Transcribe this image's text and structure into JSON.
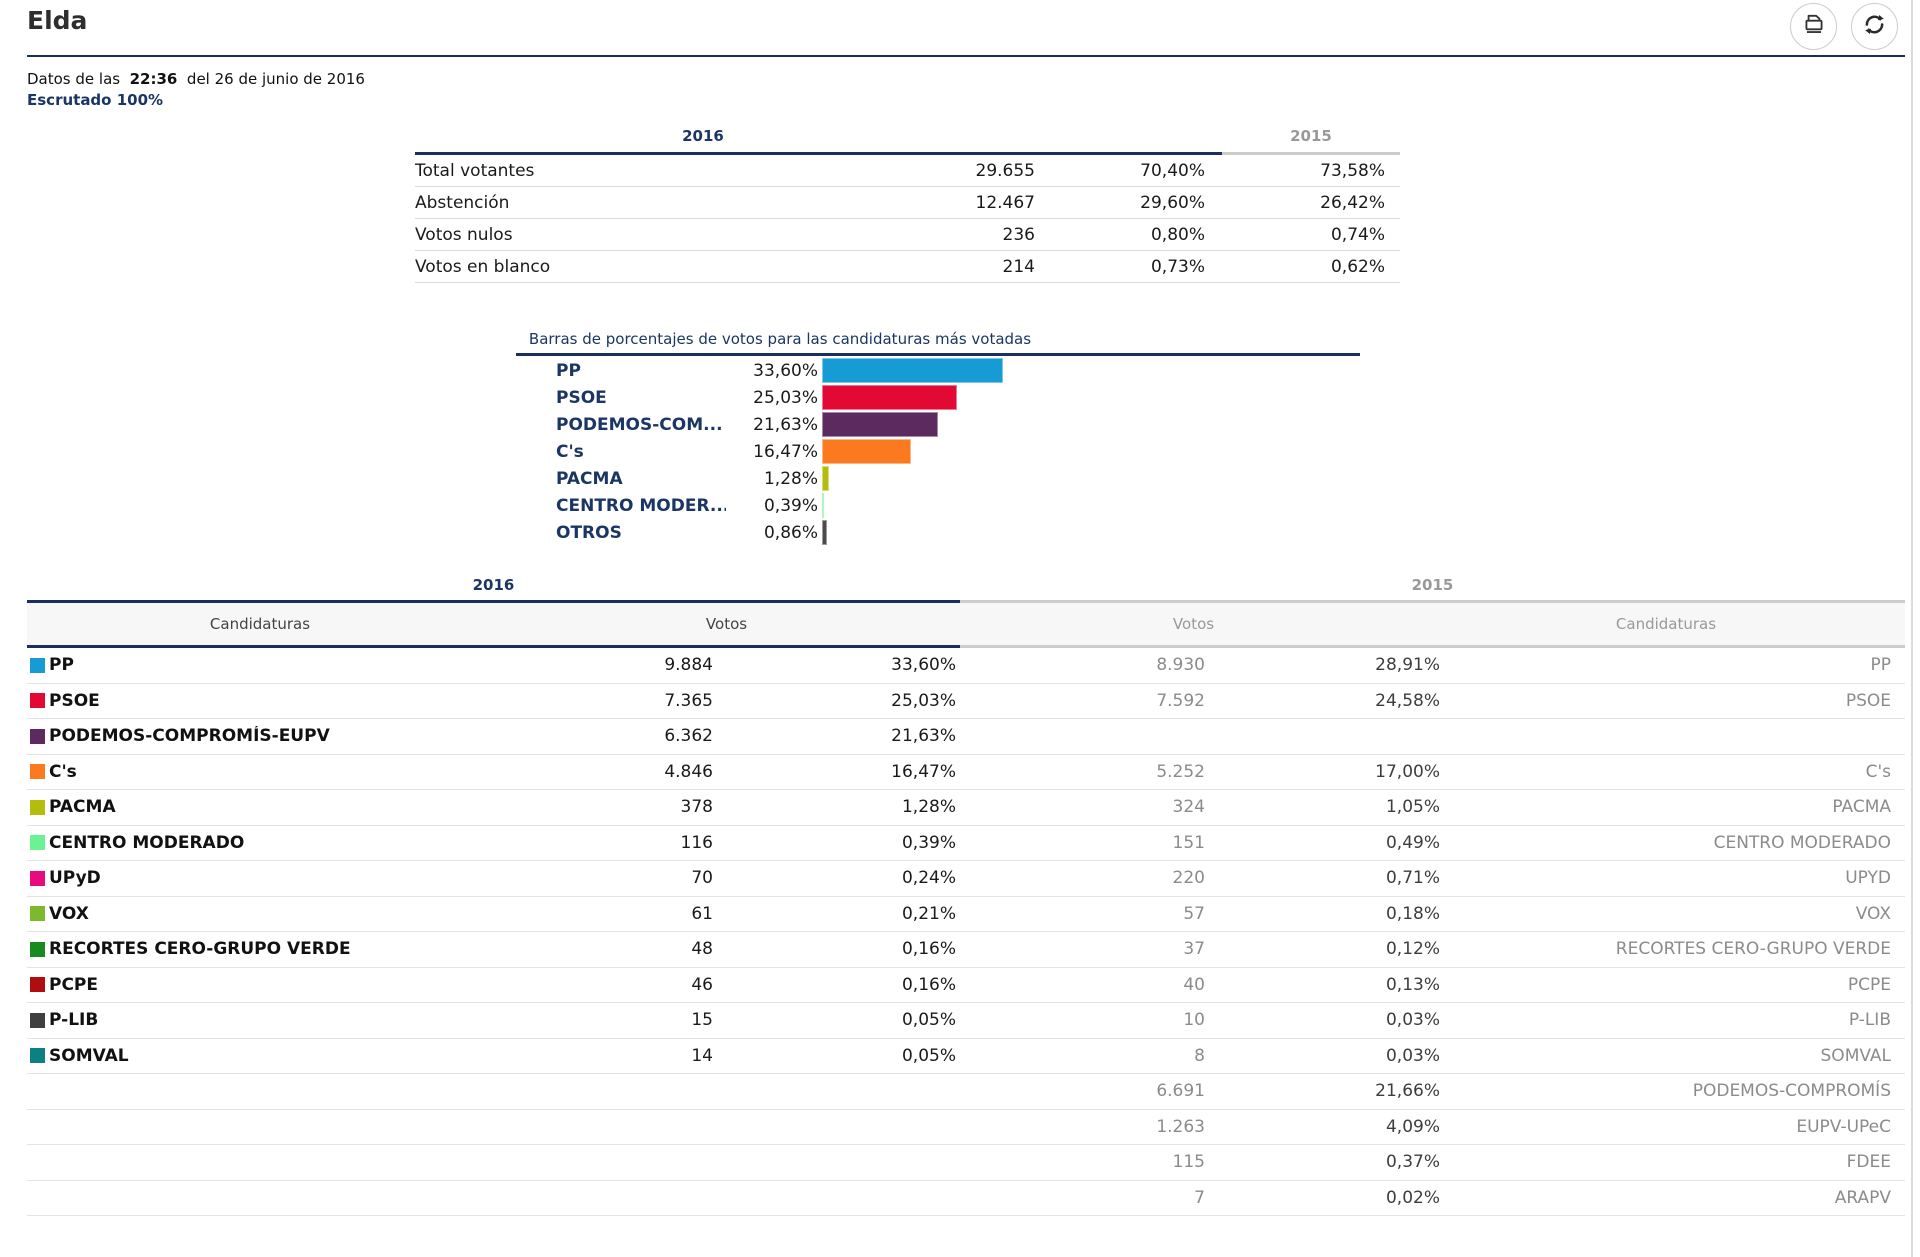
{
  "header": {
    "title": "Elda",
    "buttons": [
      {
        "icon": "printer-icon"
      },
      {
        "icon": "refresh-icon"
      }
    ]
  },
  "status": {
    "prefix": "Datos de las",
    "time": "22:36",
    "suffix": "del 26 de junio de 2016",
    "scrutiny": "Escrutado 100%"
  },
  "summary_table": {
    "year_2016": "2016",
    "year_2015": "2015",
    "rows": [
      {
        "label": "Total votantes",
        "votes": "29.655",
        "pct_2016": "70,40%",
        "pct_2015": "73,58%"
      },
      {
        "label": "Abstención",
        "votes": "12.467",
        "pct_2016": "29,60%",
        "pct_2015": "26,42%"
      },
      {
        "label": "Votos nulos",
        "votes": "236",
        "pct_2016": "0,80%",
        "pct_2015": "0,74%"
      },
      {
        "label": "Votos en blanco",
        "votes": "214",
        "pct_2016": "0,73%",
        "pct_2015": "0,62%"
      }
    ]
  },
  "chart_data": {
    "type": "bar",
    "orientation": "horizontal",
    "title": "Barras de porcentajes de votos para las candidaturas más votadas",
    "categories": [
      "PP",
      "PSOE",
      "PODEMOS-COM...",
      "C's",
      "PACMA",
      "CENTRO MODER...",
      "OTROS"
    ],
    "values": [
      33.6,
      25.03,
      21.63,
      16.47,
      1.28,
      0.39,
      0.86
    ],
    "value_labels": [
      "33,60%",
      "25,03%",
      "21,63%",
      "16,47%",
      "1,28%",
      "0,39%",
      "0,86%"
    ],
    "colors": [
      "#169bd5",
      "#e30935",
      "#5c2a5e",
      "#fb7a20",
      "#b4bd0c",
      "#6cf193",
      "#4b4b4b"
    ],
    "xlim": [
      0,
      100
    ],
    "grid": false,
    "legend": false
  },
  "main_table": {
    "year_2016": "2016",
    "year_2015": "2015",
    "col_headers": {
      "candidaturas_2016": "Candidaturas",
      "votos_2016": "Votos",
      "votos_2015": "Votos",
      "candidaturas_2015": "Candidaturas"
    },
    "rows": [
      {
        "color": "#169bd5",
        "name": "PP",
        "votes_2016": "9.884",
        "pct_2016": "33,60%",
        "votes_2015": "8.930",
        "pct_2015": "28,91%",
        "name_2015": "PP"
      },
      {
        "color": "#e30935",
        "name": "PSOE",
        "votes_2016": "7.365",
        "pct_2016": "25,03%",
        "votes_2015": "7.592",
        "pct_2015": "24,58%",
        "name_2015": "PSOE"
      },
      {
        "color": "#5c2a5e",
        "name": "PODEMOS-COMPROMÍS-EUPV",
        "votes_2016": "6.362",
        "pct_2016": "21,63%"
      },
      {
        "color": "#fb7a20",
        "name": "C's",
        "votes_2016": "4.846",
        "pct_2016": "16,47%",
        "votes_2015": "5.252",
        "pct_2015": "17,00%",
        "name_2015": "C's"
      },
      {
        "color": "#b4bd0c",
        "name": "PACMA",
        "votes_2016": "378",
        "pct_2016": "1,28%",
        "votes_2015": "324",
        "pct_2015": "1,05%",
        "name_2015": "PACMA"
      },
      {
        "color": "#6cf193",
        "name": "CENTRO MODERADO",
        "votes_2016": "116",
        "pct_2016": "0,39%",
        "votes_2015": "151",
        "pct_2015": "0,49%",
        "name_2015": "CENTRO MODERADO"
      },
      {
        "color": "#e60c7f",
        "name": "UPyD",
        "votes_2016": "70",
        "pct_2016": "0,24%",
        "votes_2015": "220",
        "pct_2015": "0,71%",
        "name_2015": "UPYD"
      },
      {
        "color": "#7cb92c",
        "name": "VOX",
        "votes_2016": "61",
        "pct_2016": "0,21%",
        "votes_2015": "57",
        "pct_2015": "0,18%",
        "name_2015": "VOX"
      },
      {
        "color": "#188a1e",
        "name": "RECORTES CERO-GRUPO VERDE",
        "votes_2016": "48",
        "pct_2016": "0,16%",
        "votes_2015": "37",
        "pct_2015": "0,12%",
        "name_2015": "RECORTES CERO-GRUPO VERDE"
      },
      {
        "color": "#b10d11",
        "name": "PCPE",
        "votes_2016": "46",
        "pct_2016": "0,16%",
        "votes_2015": "40",
        "pct_2015": "0,13%",
        "name_2015": "PCPE"
      },
      {
        "color": "#3f3f3f",
        "name": "P-LIB",
        "votes_2016": "15",
        "pct_2016": "0,05%",
        "votes_2015": "10",
        "pct_2015": "0,03%",
        "name_2015": "P-LIB"
      },
      {
        "color": "#0c8184",
        "name": "SOMVAL",
        "votes_2016": "14",
        "pct_2016": "0,05%",
        "votes_2015": "8",
        "pct_2015": "0,03%",
        "name_2015": "SOMVAL"
      },
      {
        "votes_2015": "6.691",
        "pct_2015": "21,66%",
        "name_2015": "PODEMOS-COMPROMÍS"
      },
      {
        "votes_2015": "1.263",
        "pct_2015": "4,09%",
        "name_2015": "EUPV-UPeC"
      },
      {
        "votes_2015": "115",
        "pct_2015": "0,37%",
        "name_2015": "FDEE"
      },
      {
        "votes_2015": "7",
        "pct_2015": "0,02%",
        "name_2015": "ARAPV"
      }
    ]
  }
}
